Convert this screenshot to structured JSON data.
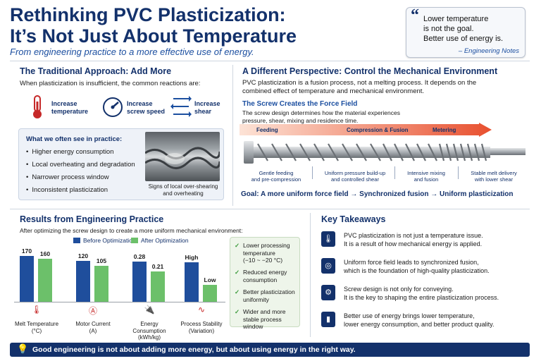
{
  "header": {
    "title_line1": "Rethinking PVC Plasticization:",
    "title_line2": "It’s Not Just About Temperature",
    "subtitle": "From engineering practice to a more effective use of energy."
  },
  "quote": {
    "line1": "Lower temperature",
    "line2": "is not the goal.",
    "line3": "Better use of energy is.",
    "attribution": "– Engineering Notes"
  },
  "traditional": {
    "heading": "The Traditional Approach: Add More",
    "intro": "When plasticization is insufficient, the common reactions are:",
    "reactions": [
      {
        "label1": "Increase",
        "label2": "temperature",
        "icon": "thermometer-icon"
      },
      {
        "label1": "Increase",
        "label2": "screw speed",
        "icon": "gauge-icon"
      },
      {
        "label1": "Increase",
        "label2": "shear",
        "icon": "shear-arrows-icon"
      }
    ],
    "practice_heading": "What we often see in practice:",
    "practice_items": [
      "Higher energy consumption",
      "Local overheating and degradation",
      "Narrower process window",
      "Inconsistent plasticization"
    ],
    "photo_caption1": "Signs of local over-shearing",
    "photo_caption2": "and overheating"
  },
  "perspective": {
    "heading": "A Different Perspective: Control the Mechanical Environment",
    "intro1": "PVC plasticization is a fusion process, not a melting process. It depends on the",
    "intro2": "combined effect of temperature and mechanical environment.",
    "force_heading": "The Screw Creates the Force Field",
    "force_text1": "The screw design determines how the material experiences",
    "force_text2": "pressure, shear, mixing and residence time.",
    "zones": [
      "Feeding",
      "Compression & Fusion",
      "Metering"
    ],
    "stages": [
      {
        "l1": "Gentle feeding",
        "l2": "and pre-compression"
      },
      {
        "l1": "Uniform pressure build-up",
        "l2": "and controlled shear"
      },
      {
        "l1": "Intensive mixing",
        "l2": "and fusion"
      },
      {
        "l1": "Stable melt delivery",
        "l2": "with lower shear"
      }
    ],
    "goal": "Goal: A more uniform force field → Synchronized fusion → Uniform plasticization"
  },
  "results": {
    "heading": "Results from Engineering Practice",
    "intro": "After optimizing the screw design to create a more uniform mechanical environment:",
    "legend_before": "Before Optimization",
    "legend_after": "After Optimization",
    "colors": {
      "before": "#1f4e9c",
      "after": "#6cc06a"
    },
    "checks": [
      {
        "l1": "Lower processing",
        "l2": "temperature",
        "l3": "(−10 ~ −20 °C)"
      },
      {
        "l1": "Reduced energy",
        "l2": "consumption",
        "l3": ""
      },
      {
        "l1": "Better plasticization",
        "l2": "uniformity",
        "l3": ""
      },
      {
        "l1": "Wider and more",
        "l2": "stable process window",
        "l3": ""
      }
    ]
  },
  "chart_data": {
    "type": "bar",
    "categories": [
      "Melt Temperature (°C)",
      "Motor Current (A)",
      "Energy Consumption (kWh/kg)",
      "Process Stability (Variation)"
    ],
    "category_lines": [
      [
        "Melt Temperature",
        "(°C)"
      ],
      [
        "Motor Current",
        "(A)"
      ],
      [
        "Energy Consumption",
        "(kWh/kg)"
      ],
      [
        "Process Stability",
        "(Variation)"
      ]
    ],
    "series": [
      {
        "name": "Before Optimization",
        "values": [
          170,
          120,
          0.28,
          "High"
        ],
        "relative": [
          0.95,
          0.86,
          0.84,
          0.82
        ]
      },
      {
        "name": "After Optimization",
        "values": [
          160,
          105,
          0.21,
          "Low"
        ],
        "relative": [
          0.89,
          0.75,
          0.63,
          0.36
        ]
      }
    ],
    "icons": [
      "thermometer-icon",
      "ammeter-icon",
      "plug-icon",
      "wave-icon"
    ]
  },
  "takeaways": {
    "heading": "Key Takeaways",
    "items": [
      {
        "l1": "PVC plasticization is not just a temperature issue.",
        "l2": "It is a result of how mechanical energy is applied.",
        "icon": "thermometer-icon"
      },
      {
        "l1": "Uniform force field leads to synchronized fusion,",
        "l2": "which is the foundation of high-quality plasticization.",
        "icon": "target-icon"
      },
      {
        "l1": "Screw design is not only for conveying.",
        "l2": "It is the key to shaping the entire plasticization process.",
        "icon": "screw-icon"
      },
      {
        "l1": "Better use of energy brings lower temperature,",
        "l2": "lower energy consumption, and better product quality.",
        "icon": "bar-chart-icon"
      }
    ]
  },
  "footer": {
    "text": "Good engineering is not about adding more energy, but about using energy in the right way."
  }
}
